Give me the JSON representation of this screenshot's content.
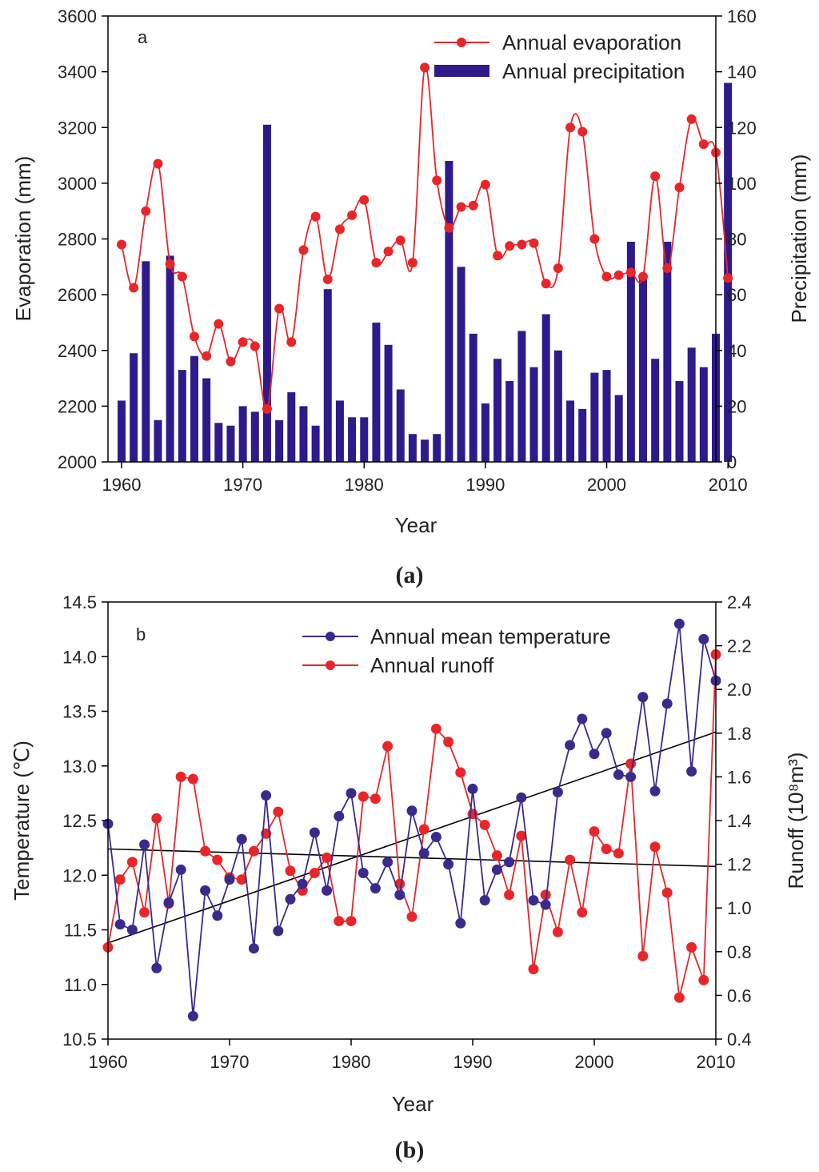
{
  "colors": {
    "evaporation": "#e8262a",
    "precipitation": "#2e1a8a",
    "temperature": "#3a2a8c",
    "runoff": "#e8262a",
    "trend": "#000000"
  },
  "chart_data": [
    {
      "type": "bar+line",
      "panel_letter": "a",
      "caption_letter": "a",
      "xlabel": "Year",
      "ylabel_left": "Evaporation (mm)",
      "ylabel_right": "Precipitation (mm)",
      "xlim": [
        1960,
        2010
      ],
      "ylim_left": [
        2000,
        3600
      ],
      "ylim_right": [
        0,
        160
      ],
      "x_ticks": [
        1960,
        1970,
        1980,
        1990,
        2000,
        2010
      ],
      "y_ticks_left": [
        2000,
        2200,
        2400,
        2600,
        2800,
        3000,
        3200,
        3400,
        3600
      ],
      "y_ticks_right": [
        0,
        20,
        40,
        60,
        80,
        100,
        120,
        140,
        160
      ],
      "legend_position": "top-right",
      "years": [
        1960,
        1961,
        1962,
        1963,
        1964,
        1965,
        1966,
        1967,
        1968,
        1969,
        1970,
        1971,
        1972,
        1973,
        1974,
        1975,
        1976,
        1977,
        1978,
        1979,
        1980,
        1981,
        1982,
        1983,
        1984,
        1985,
        1986,
        1987,
        1988,
        1989,
        1990,
        1991,
        1992,
        1993,
        1994,
        1995,
        1996,
        1997,
        1998,
        1999,
        2000,
        2001,
        2002,
        2003,
        2004,
        2005,
        2006,
        2007,
        2008,
        2009,
        2010
      ],
      "series": [
        {
          "name": "Annual evaporation",
          "kind": "line",
          "axis": "left",
          "values": [
            2780,
            2625,
            2900,
            3070,
            2710,
            2665,
            2450,
            2380,
            2495,
            2360,
            2430,
            2415,
            2190,
            2550,
            2430,
            2760,
            2880,
            2655,
            2835,
            2885,
            2940,
            2715,
            2755,
            2795,
            2715,
            3415,
            3010,
            2840,
            2915,
            2920,
            2995,
            2740,
            2775,
            2780,
            2785,
            2640,
            2695,
            3200,
            3185,
            2800,
            2665,
            2670,
            2680,
            2665,
            3025,
            2695,
            2985,
            3230,
            3140,
            3110,
            2660
          ]
        },
        {
          "name": "Annual precipitation",
          "kind": "bar",
          "axis": "right",
          "values": [
            22,
            39,
            72,
            15,
            74,
            33,
            38,
            30,
            14,
            13,
            20,
            18,
            121,
            15,
            25,
            20,
            13,
            62,
            22,
            16,
            16,
            50,
            42,
            26,
            10,
            8,
            10,
            108,
            70,
            46,
            21,
            37,
            29,
            47,
            34,
            53,
            40,
            22,
            19,
            32,
            33,
            24,
            79,
            67,
            37,
            79,
            29,
            41,
            34,
            46,
            136
          ]
        }
      ]
    },
    {
      "type": "line",
      "panel_letter": "b",
      "caption_letter": "b",
      "xlabel": "Year",
      "ylabel_left": "Temperature (℃)",
      "ylabel_right": "Runoff (10⁸m³)",
      "xlim": [
        1960,
        2010
      ],
      "ylim_left": [
        10.5,
        14.5
      ],
      "ylim_right": [
        0.4,
        2.4
      ],
      "x_ticks": [
        1960,
        1970,
        1980,
        1990,
        2000,
        2010
      ],
      "y_ticks_left": [
        "10.5",
        "11.0",
        "11.5",
        "12.0",
        "12.5",
        "13.0",
        "13.5",
        "14.0",
        "14.5"
      ],
      "y_ticks_right": [
        "0.4",
        "0.6",
        "0.8",
        "1.0",
        "1.2",
        "1.4",
        "1.6",
        "1.8",
        "2.0",
        "2.2",
        "2.4"
      ],
      "legend_position": "top-right",
      "years": [
        1960,
        1961,
        1962,
        1963,
        1964,
        1965,
        1966,
        1967,
        1968,
        1969,
        1970,
        1971,
        1972,
        1973,
        1974,
        1975,
        1976,
        1977,
        1978,
        1979,
        1980,
        1981,
        1982,
        1983,
        1984,
        1985,
        1986,
        1987,
        1988,
        1989,
        1990,
        1991,
        1992,
        1993,
        1994,
        1995,
        1996,
        1997,
        1998,
        1999,
        2000,
        2001,
        2002,
        2003,
        2004,
        2005,
        2006,
        2007,
        2008,
        2009,
        2010
      ],
      "series": [
        {
          "name": "Annual mean temperature",
          "axis": "left",
          "values": [
            12.47,
            11.55,
            11.5,
            12.28,
            11.15,
            11.75,
            12.05,
            10.71,
            11.86,
            11.63,
            11.96,
            12.33,
            11.33,
            12.73,
            11.49,
            11.78,
            11.92,
            12.39,
            11.86,
            12.54,
            12.75,
            12.02,
            11.88,
            12.12,
            11.82,
            12.59,
            12.2,
            12.35,
            12.1,
            11.56,
            12.79,
            11.77,
            12.05,
            12.12,
            12.71,
            11.77,
            11.73,
            12.76,
            13.19,
            13.43,
            13.11,
            13.3,
            12.92,
            12.9,
            13.63,
            12.77,
            13.57,
            14.3,
            12.95,
            14.16,
            13.78
          ]
        },
        {
          "name": "Annual runoff",
          "axis": "right",
          "values": [
            0.82,
            1.13,
            1.21,
            0.98,
            1.41,
            1.02,
            1.6,
            1.59,
            1.26,
            1.22,
            1.14,
            1.13,
            1.26,
            1.34,
            1.44,
            1.17,
            1.08,
            1.16,
            1.23,
            0.94,
            0.94,
            1.51,
            1.5,
            1.74,
            1.11,
            0.96,
            1.36,
            1.82,
            1.76,
            1.62,
            1.43,
            1.38,
            1.24,
            1.06,
            1.33,
            0.72,
            1.06,
            0.89,
            1.22,
            0.98,
            1.35,
            1.27,
            1.25,
            1.66,
            0.78,
            1.28,
            1.07,
            0.59,
            0.82,
            0.67,
            2.16
          ]
        }
      ],
      "trendlines": [
        {
          "axis": "left",
          "from": [
            1960,
            11.38
          ],
          "to": [
            2010,
            13.31
          ]
        },
        {
          "axis": "right",
          "from": [
            1960,
            1.27
          ],
          "to": [
            2010,
            1.19
          ]
        }
      ]
    }
  ]
}
